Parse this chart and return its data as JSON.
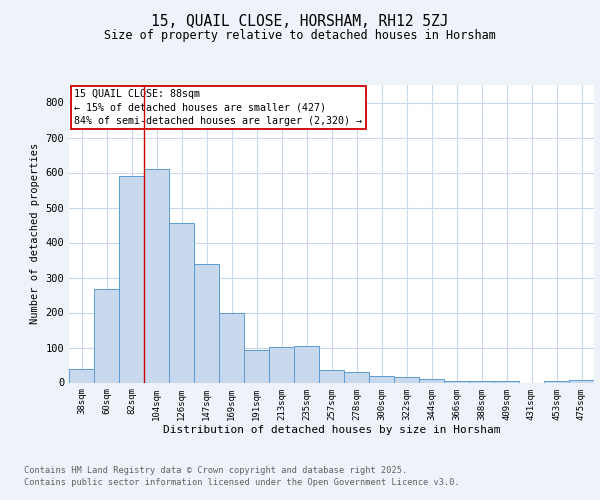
{
  "title1": "15, QUAIL CLOSE, HORSHAM, RH12 5ZJ",
  "title2": "Size of property relative to detached houses in Horsham",
  "xlabel": "Distribution of detached houses by size in Horsham",
  "ylabel": "Number of detached properties",
  "categories": [
    "38sqm",
    "60sqm",
    "82sqm",
    "104sqm",
    "126sqm",
    "147sqm",
    "169sqm",
    "191sqm",
    "213sqm",
    "235sqm",
    "257sqm",
    "278sqm",
    "300sqm",
    "322sqm",
    "344sqm",
    "366sqm",
    "388sqm",
    "409sqm",
    "431sqm",
    "453sqm",
    "475sqm"
  ],
  "bar_heights": [
    38,
    267,
    590,
    610,
    455,
    338,
    200,
    92,
    102,
    105,
    37,
    30,
    18,
    15,
    10,
    5,
    5,
    4,
    0,
    4,
    8
  ],
  "bar_color": "#c8d9ed",
  "bar_edge_color": "#5b9bd5",
  "bar_width": 1.0,
  "vline_x": 2.5,
  "vline_color": "#cc0000",
  "annotation_text": "15 QUAIL CLOSE: 88sqm\n← 15% of detached houses are smaller (427)\n84% of semi-detached houses are larger (2,320) →",
  "annotation_box_color": "#cc0000",
  "ylim": [
    0,
    850
  ],
  "yticks": [
    0,
    100,
    200,
    300,
    400,
    500,
    600,
    700,
    800
  ],
  "footnote1": "Contains HM Land Registry data © Crown copyright and database right 2025.",
  "footnote2": "Contains public sector information licensed under the Open Government Licence v3.0.",
  "bg_color": "#eef2f9",
  "plot_bg_color": "#ffffff",
  "grid_color": "#c8d9ed",
  "title_fontsize": 10.5,
  "subtitle_fontsize": 8.5
}
